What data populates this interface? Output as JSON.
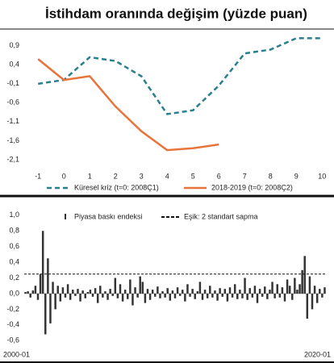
{
  "chart_data": [
    {
      "type": "line",
      "title": "İstihdam oranında değişim (yüzde puan)",
      "x": [
        -1,
        0,
        1,
        2,
        3,
        4,
        5,
        6,
        7,
        8,
        9,
        10
      ],
      "xlim": [
        -1.6,
        10.4
      ],
      "xticks": [
        -1,
        0,
        1,
        2,
        3,
        4,
        5,
        6,
        7,
        8,
        9,
        10
      ],
      "ylim": [
        -2.4,
        1.3
      ],
      "yticks": [
        {
          "value": 0.9,
          "label": "0,9"
        },
        {
          "value": 0.4,
          "label": "0,4"
        },
        {
          "value": -0.1,
          "label": "-0,1"
        },
        {
          "value": -0.6,
          "label": "-0,6"
        },
        {
          "value": -1.1,
          "label": "-1,1"
        },
        {
          "value": -1.6,
          "label": "-1,6"
        },
        {
          "value": -2.1,
          "label": "-2,1"
        }
      ],
      "series": [
        {
          "name": "Küresel kriz (t=0: 2008Ç1)",
          "color": "#2a7f8f",
          "dashed": true,
          "values": [
            -0.1,
            0.0,
            0.6,
            0.5,
            0.1,
            -0.9,
            -0.8,
            -0.15,
            0.7,
            0.8,
            1.1,
            1.1
          ]
        },
        {
          "name": "2018-2019 (t=0: 2008Ç2)",
          "color": "#e8743b",
          "dashed": false,
          "values": [
            0.55,
            0.0,
            0.1,
            -0.7,
            -1.35,
            -1.85,
            -1.8,
            -1.7,
            null,
            null,
            null,
            null
          ]
        }
      ]
    },
    {
      "type": "bar",
      "categories": [
        "2000-01",
        null,
        null,
        null,
        null,
        null,
        null,
        null,
        null,
        null,
        null,
        null,
        null,
        null,
        null,
        null,
        null,
        null,
        null,
        null,
        null,
        null,
        null,
        null,
        null,
        null,
        null,
        null,
        null,
        null,
        null,
        null,
        null,
        null,
        null,
        null,
        null,
        null,
        null,
        null,
        null,
        null,
        null,
        null,
        null,
        null,
        null,
        null,
        null,
        null,
        null,
        null,
        null,
        null,
        null,
        null,
        null,
        null,
        null,
        null,
        null,
        null,
        null,
        null,
        null,
        null,
        null,
        null,
        null,
        null,
        null,
        null,
        null,
        null,
        null,
        null,
        null,
        null,
        null,
        null,
        null,
        null,
        null,
        null,
        null,
        null,
        null,
        null,
        null,
        null,
        null,
        null,
        null,
        null,
        null,
        null,
        null,
        null,
        null,
        null,
        null,
        null,
        null,
        null,
        null,
        null,
        null,
        null,
        null,
        null,
        null,
        null,
        null,
        null,
        null,
        null,
        null,
        null,
        null,
        null,
        "2020-01"
      ],
      "series": [
        {
          "name": "Piyasa baskı endeksi",
          "color": "#333333",
          "values": [
            0.02,
            0.03,
            -0.05,
            0.04,
            0.1,
            -0.08,
            0.25,
            0.8,
            -0.52,
            0.45,
            -0.38,
            0.15,
            -0.2,
            0.1,
            -0.1,
            0.08,
            -0.05,
            0.12,
            -0.08,
            0.05,
            -0.03,
            0.06,
            -0.1,
            0.04,
            -0.06,
            0.02,
            0.05,
            -0.04,
            0.07,
            -0.12,
            0.1,
            -0.05,
            0.03,
            -0.08,
            0.06,
            -0.03,
            0.2,
            -0.06,
            0.12,
            -0.1,
            0.05,
            -0.07,
            0.18,
            -0.15,
            0.08,
            -0.05,
            0.22,
            0.15,
            -0.12,
            0.06,
            -0.08,
            0.05,
            -0.04,
            0.09,
            -0.06,
            0.03,
            -0.05,
            0.07,
            -0.09,
            0.04,
            -0.06,
            0.08,
            -0.03,
            0.05,
            -0.1,
            0.12,
            -0.04,
            0.06,
            -0.07,
            0.03,
            0.15,
            -0.08,
            0.05,
            -0.06,
            0.1,
            -0.05,
            0.04,
            -0.09,
            0.07,
            -0.04,
            0.06,
            -0.1,
            0.08,
            -0.05,
            0.12,
            -0.07,
            0.05,
            -0.06,
            0.2,
            -0.08,
            0.07,
            -0.05,
            0.1,
            -0.12,
            0.06,
            -0.04,
            0.09,
            -0.07,
            0.05,
            0.15,
            -0.06,
            0.12,
            -0.05,
            0.08,
            -0.1,
            0.18,
            0.1,
            -0.08,
            0.2,
            0.05,
            0.12,
            0.3,
            0.48,
            -0.32,
            0.22,
            -0.2,
            0.1,
            -0.12,
            0.06,
            -0.05,
            0.08
          ]
        }
      ],
      "threshold": {
        "name": "Eşik: 2 standart sapma",
        "value": 0.25
      },
      "ylim": [
        -0.68,
        1.05
      ],
      "yticks": [
        {
          "value": 1.0,
          "label": "1,0"
        },
        {
          "value": 0.8,
          "label": "0,8"
        },
        {
          "value": 0.6,
          "label": "0,6"
        },
        {
          "value": 0.4,
          "label": "0,4"
        },
        {
          "value": 0.2,
          "label": "0,2"
        },
        {
          "value": 0.0,
          "label": "0,0"
        },
        {
          "value": -0.2,
          "label": "-0,2"
        },
        {
          "value": -0.4,
          "label": "-0,4"
        },
        {
          "value": -0.6,
          "label": "-0,6"
        }
      ]
    }
  ]
}
